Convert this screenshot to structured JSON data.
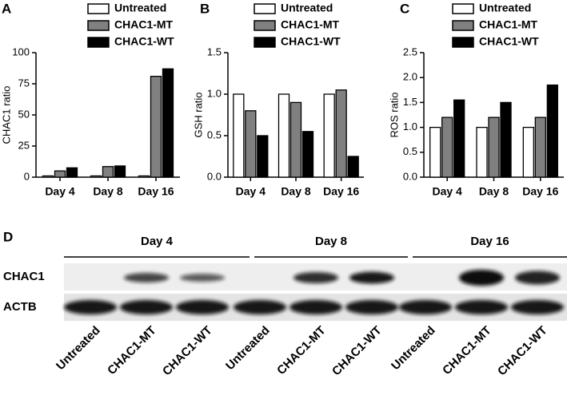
{
  "chart_data": [
    {
      "type": "bar",
      "panel": "A",
      "ylabel": "CHAC1 ratio",
      "categories": [
        "Day 4",
        "Day 8",
        "Day 16"
      ],
      "series": [
        {
          "name": "Untreated",
          "color": "#ffffff",
          "values": [
            1,
            1,
            1
          ]
        },
        {
          "name": "CHAC1-MT",
          "color": "#808080",
          "values": [
            5,
            8.5,
            81
          ]
        },
        {
          "name": "CHAC1-WT",
          "color": "#000000",
          "values": [
            7.5,
            9,
            87
          ]
        }
      ],
      "ylim": [
        0,
        100
      ],
      "yticks": [
        0,
        25,
        50,
        75,
        100
      ]
    },
    {
      "type": "bar",
      "panel": "B",
      "ylabel": "GSH ratio",
      "categories": [
        "Day 4",
        "Day 8",
        "Day 16"
      ],
      "series": [
        {
          "name": "Untreated",
          "color": "#ffffff",
          "values": [
            1,
            1,
            1
          ]
        },
        {
          "name": "CHAC1-MT",
          "color": "#808080",
          "values": [
            0.8,
            0.9,
            1.05
          ]
        },
        {
          "name": "CHAC1-WT",
          "color": "#000000",
          "values": [
            0.5,
            0.55,
            0.25
          ]
        }
      ],
      "ylim": [
        0,
        1.5
      ],
      "yticks": [
        {
          "value": 0,
          "label": "0.0"
        },
        0.5,
        {
          "value": 1,
          "label": "1.0"
        },
        1.5
      ]
    },
    {
      "type": "bar",
      "panel": "C",
      "ylabel": "ROS ratio",
      "categories": [
        "Day 4",
        "Day 8",
        "Day 16"
      ],
      "series": [
        {
          "name": "Untreated",
          "color": "#ffffff",
          "values": [
            1,
            1,
            1
          ]
        },
        {
          "name": "CHAC1-MT",
          "color": "#808080",
          "values": [
            1.2,
            1.2,
            1.2
          ]
        },
        {
          "name": "CHAC1-WT",
          "color": "#000000",
          "values": [
            1.55,
            1.5,
            1.85
          ]
        }
      ],
      "ylim": [
        0,
        2.5
      ],
      "yticks": [
        {
          "value": 0,
          "label": "0.0"
        },
        0.5,
        {
          "value": 1,
          "label": "1.0"
        },
        1.5,
        {
          "value": 2,
          "label": "2.0"
        },
        2.5
      ]
    }
  ],
  "blot": {
    "panel": "D",
    "groups": [
      "Day 4",
      "Day 8",
      "Day 16"
    ],
    "rows": [
      "CHAC1",
      "ACTB"
    ],
    "lanes": [
      "Untreated",
      "CHAC1-MT",
      "CHAC1-WT",
      "Untreated",
      "CHAC1-MT",
      "CHAC1-WT",
      "Untreated",
      "CHAC1-MT",
      "CHAC1-WT"
    ]
  }
}
